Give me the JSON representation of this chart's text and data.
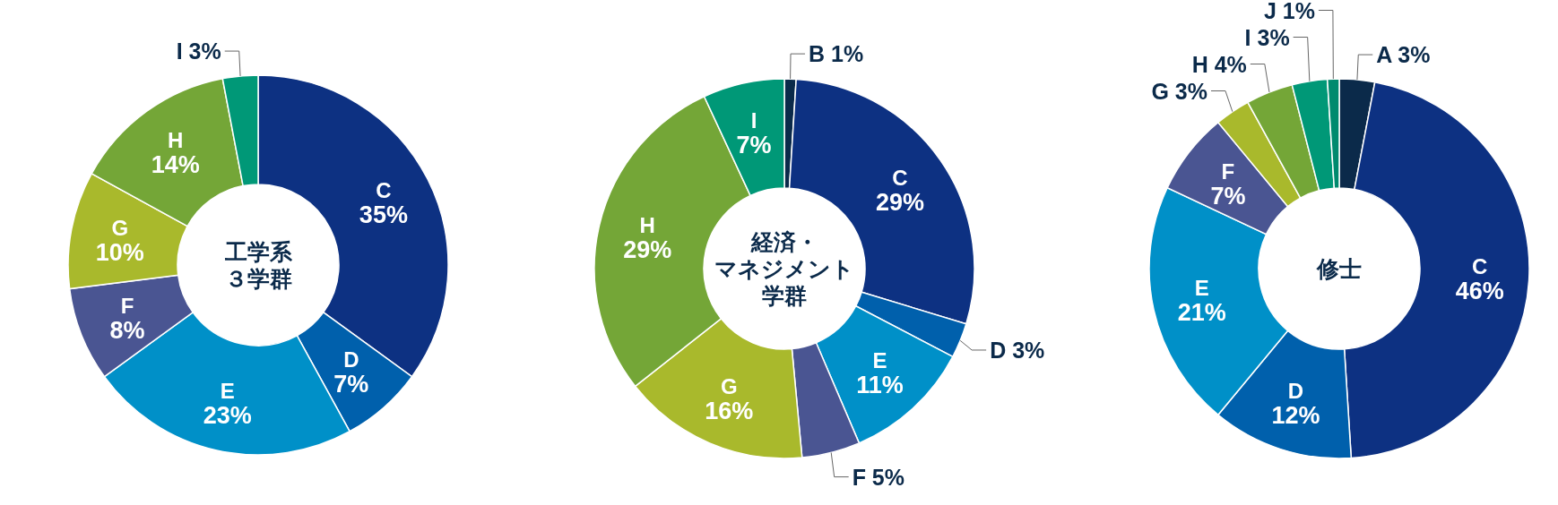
{
  "chart_data": [
    {
      "type": "donut",
      "title": "工学系３学群",
      "categories": [
        "C",
        "D",
        "E",
        "F",
        "G",
        "H",
        "I"
      ],
      "values": [
        35,
        7,
        23,
        8,
        10,
        14,
        3
      ],
      "value_labels": [
        "35%",
        "7%",
        "23%",
        "8%",
        "10%",
        "14%",
        "3%"
      ],
      "colors": [
        "#0d3182",
        "#0060ac",
        "#0090c8",
        "#4a5592",
        "#a9b92c",
        "#74a637",
        "#009877"
      ]
    },
    {
      "type": "donut",
      "title": "経済・マネジメント学群",
      "categories": [
        "B",
        "C",
        "D",
        "E",
        "F",
        "G",
        "H",
        "I"
      ],
      "values": [
        1,
        29,
        3,
        11,
        5,
        16,
        29,
        7
      ],
      "value_labels": [
        "1%",
        "29%",
        "3%",
        "11%",
        "5%",
        "16%",
        "29%",
        "7%"
      ],
      "colors": [
        "#0b2a4a",
        "#0d3182",
        "#0060ac",
        "#0090c8",
        "#4a5592",
        "#a9b92c",
        "#74a637",
        "#009877"
      ]
    },
    {
      "type": "donut",
      "title": "修士",
      "categories": [
        "A",
        "C",
        "D",
        "E",
        "F",
        "G",
        "H",
        "I",
        "J"
      ],
      "values": [
        3,
        46,
        12,
        21,
        7,
        3,
        4,
        3,
        1
      ],
      "value_labels": [
        "3%",
        "46%",
        "12%",
        "21%",
        "7%",
        "3%",
        "4%",
        "3%",
        "1%"
      ],
      "colors": [
        "#0b2a4a",
        "#0d3182",
        "#0060ac",
        "#0090c8",
        "#4a5592",
        "#a9b92c",
        "#74a637",
        "#009877",
        "#008a6e"
      ]
    }
  ]
}
